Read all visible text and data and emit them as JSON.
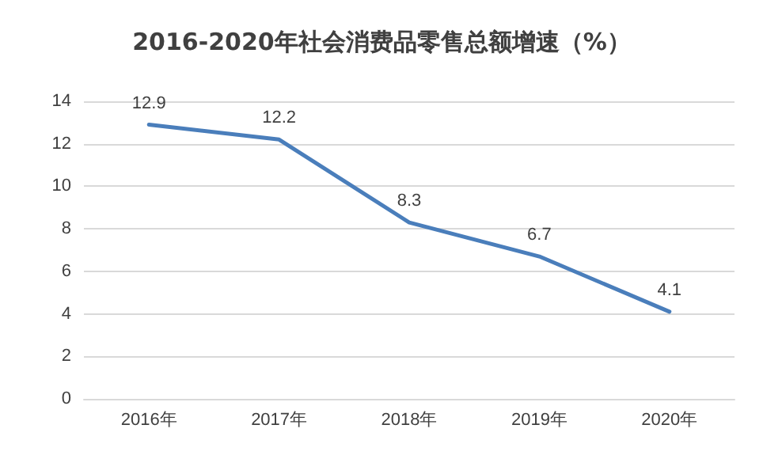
{
  "chart_data": {
    "type": "line",
    "title": "2016-2020年社会消费品零售总额增速（%）",
    "categories": [
      "2016年",
      "2017年",
      "2018年",
      "2019年",
      "2020年"
    ],
    "series": [
      {
        "color": "#4a7ebb",
        "values": [
          12.9,
          12.2,
          8.3,
          6.7,
          4.1
        ]
      }
    ],
    "ylim": [
      0,
      14
    ],
    "yticks": [
      0,
      2,
      4,
      6,
      8,
      10,
      12,
      14
    ],
    "grid": "y",
    "marker": "none",
    "line_style": "solid",
    "data_labels": true
  }
}
